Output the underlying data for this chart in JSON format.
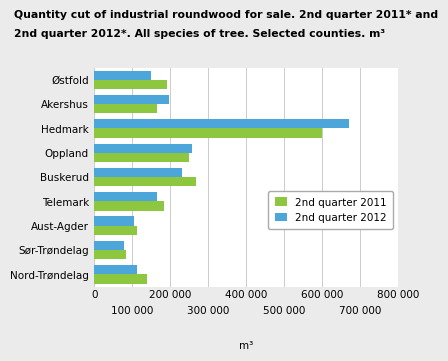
{
  "title_line1": "Quantity cut of industrial roundwood for sale. 2nd quarter 2011* and",
  "title_line2": "2nd quarter 2012*. All species of tree. Selected counties. m³",
  "categories": [
    "Østfold",
    "Akershus",
    "Hedmark",
    "Oppland",
    "Buskerud",
    "Telemark",
    "Aust-Agder",
    "Sør-Trøndelag",
    "Nord-Trøndelag"
  ],
  "values_2011": [
    190000,
    165000,
    600000,
    248000,
    268000,
    182000,
    112000,
    82000,
    138000
  ],
  "values_2012": [
    150000,
    195000,
    670000,
    258000,
    230000,
    165000,
    105000,
    78000,
    112000
  ],
  "color_2011": "#8DC63F",
  "color_2012": "#4DA6D9",
  "legend_2011": "2nd quarter 2011",
  "legend_2012": "2nd quarter 2012",
  "xlabel": "m³",
  "xlim": [
    0,
    800000
  ],
  "xticks_major": [
    0,
    200000,
    400000,
    600000,
    800000
  ],
  "xticks_minor": [
    100000,
    300000,
    500000,
    700000
  ],
  "bg_color": "#ebebeb",
  "plot_bg_color": "#ffffff",
  "title_fontsize": 7.8,
  "axis_fontsize": 7.5,
  "legend_fontsize": 7.5
}
